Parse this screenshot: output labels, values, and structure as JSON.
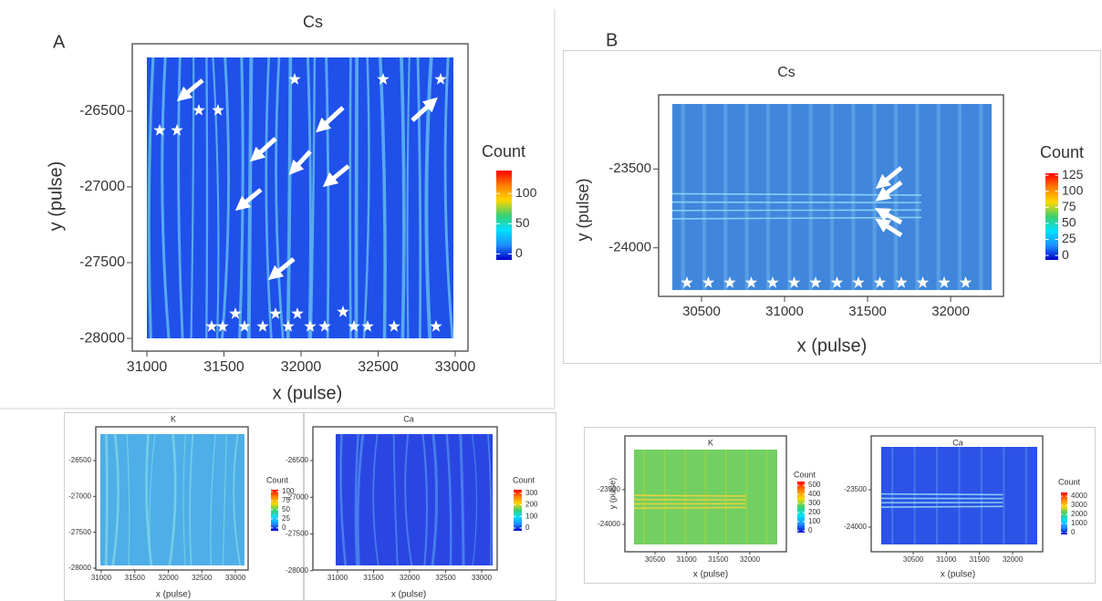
{
  "panel_labels": [
    "A",
    "B"
  ],
  "chart_data": [
    {
      "type": "heatmap",
      "title": "Cs",
      "xlabel": "x (pulse)",
      "ylabel": "y (pulse)",
      "xlim": [
        30905,
        33083
      ],
      "ylim": [
        -28084,
        -26055
      ],
      "xticks": [
        31000,
        31500,
        32000,
        32500,
        33000
      ],
      "yticks": [
        -26500,
        -27000,
        -27500,
        -28000
      ],
      "heatmap_color": "#1f50ea",
      "stripe_color": "#62b8f0",
      "colorscale": [
        "#0000c8",
        "#1e90ff",
        "#00e0ff",
        "#3cd070",
        "#ffd700",
        "#ff7f00",
        "#ff0000"
      ],
      "colorbar": {
        "title": "Count",
        "lim": [
          -10,
          138
        ],
        "ticks": [
          0,
          50,
          100
        ]
      }
    },
    {
      "type": "heatmap",
      "title": "Cs",
      "xlabel": "x (pulse)",
      "ylabel": "y (pulse)",
      "xlim": [
        30242,
        32318
      ],
      "ylim": [
        -24308,
        -23030
      ],
      "xticks": [
        30500,
        31000,
        31500,
        32000
      ],
      "yticks": [
        -23500,
        -24000
      ],
      "heatmap_color": "#3f86dc",
      "stripe_color": "#6cb0ee",
      "colorscale": [
        "#0000c8",
        "#1e90ff",
        "#00e0ff",
        "#3cd070",
        "#ffd700",
        "#ff7f00",
        "#ff0000"
      ],
      "colorbar": {
        "title": "Count",
        "lim": [
          -7,
          128
        ],
        "ticks": [
          0,
          25,
          50,
          75,
          100,
          125
        ]
      }
    },
    {
      "type": "heatmap",
      "title": "K",
      "xlabel": "x (pulse)",
      "xlim": [
        30918,
        33190
      ],
      "ylim": [
        -28025,
        -26030
      ],
      "xticks": [
        31000,
        31500,
        32000,
        32500,
        33000
      ],
      "yticks": [
        -26500,
        -27000,
        -27500,
        -28000
      ],
      "heatmap_color": "#4eaee8",
      "stripe_color": "#7cd2e6",
      "colorscale": [
        "#0000c8",
        "#1e90ff",
        "#00e0ff",
        "#3cd070",
        "#ffd700",
        "#ff7f00",
        "#ff0000"
      ],
      "colorbar": {
        "title": "Count",
        "lim": [
          -8,
          105
        ],
        "ticks": [
          0,
          25,
          50,
          75,
          100
        ]
      }
    },
    {
      "type": "heatmap",
      "title": "Ca",
      "xlabel": "x (pulse)",
      "xlim": [
        30658,
        33215
      ],
      "ylim": [
        -27990,
        -26040
      ],
      "xticks": [
        31000,
        31500,
        32000,
        32500,
        33000
      ],
      "yticks": [
        -26500,
        -27000,
        -27500,
        -28000
      ],
      "heatmap_color": "#2a46e2",
      "stripe_color": "#4c86ee",
      "colorscale": [
        "#0000c8",
        "#1e90ff",
        "#00e0ff",
        "#3cd070",
        "#ffd700",
        "#ff7f00",
        "#ff0000"
      ],
      "colorbar": {
        "title": "Count",
        "lim": [
          -24,
          331
        ],
        "ticks": [
          0,
          100,
          200,
          300
        ]
      }
    },
    {
      "type": "heatmap",
      "title": "K",
      "xlabel": "x (pulse)",
      "ylabel": "y (pulse)",
      "xlim": [
        30024,
        32578
      ],
      "ylim": [
        -24395,
        -22724
      ],
      "xticks": [
        30500,
        31000,
        31500,
        32000
      ],
      "yticks": [
        -23500,
        -24000
      ],
      "heatmap_color": "#72cf62",
      "stripe_color": "#a8d83a",
      "colorscale": [
        "#0000c8",
        "#1e90ff",
        "#00e0ff",
        "#3cd070",
        "#ffd700",
        "#ff7f00",
        "#ff0000"
      ],
      "colorbar": {
        "title": "Count",
        "lim": [
          -20,
          541
        ],
        "ticks": [
          0,
          100,
          200,
          300,
          400,
          500
        ]
      }
    },
    {
      "type": "heatmap",
      "title": "Ca",
      "xlabel": "x (pulse)",
      "xlim": [
        29867,
        32453
      ],
      "ylim": [
        -24330,
        -22780
      ],
      "xticks": [
        30500,
        31000,
        31500,
        32000
      ],
      "yticks": [
        -23500,
        -24000
      ],
      "heatmap_color": "#2c52e6",
      "stripe_color": "#5690f0",
      "colorscale": [
        "#0000c8",
        "#1e90ff",
        "#00e0ff",
        "#3cd070",
        "#ffd700",
        "#ff7f00",
        "#ff0000"
      ],
      "colorbar": {
        "title": "Count",
        "lim": [
          -205,
          4410
        ],
        "ticks": [
          0,
          1000,
          2000,
          3000,
          4000
        ]
      }
    }
  ]
}
